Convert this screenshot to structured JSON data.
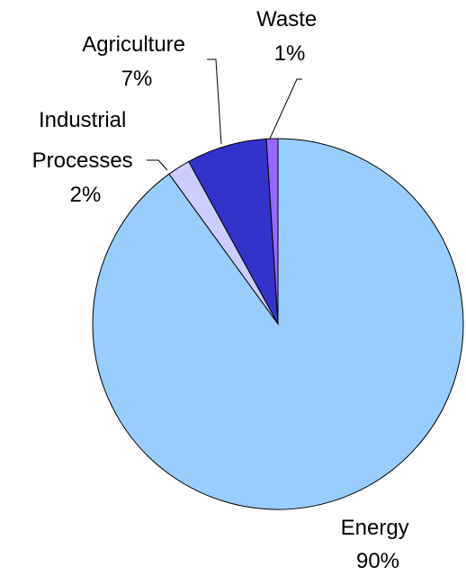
{
  "chart_data": {
    "type": "pie",
    "title": "",
    "categories": [
      "Energy",
      "Industrial Processes",
      "Agriculture",
      "Waste"
    ],
    "values": [
      90,
      2,
      7,
      1
    ],
    "labels": [
      [
        "Energy",
        "90%"
      ],
      [
        "Industrial",
        "Processes",
        "2%"
      ],
      [
        "Agriculture",
        "7%"
      ],
      [
        "Waste",
        "1%"
      ]
    ],
    "colors": [
      "#99ccff",
      "#ccccff",
      "#3333cc",
      "#9966ff"
    ],
    "start_angle_deg": 0,
    "direction": "clockwise",
    "legend": "none"
  }
}
